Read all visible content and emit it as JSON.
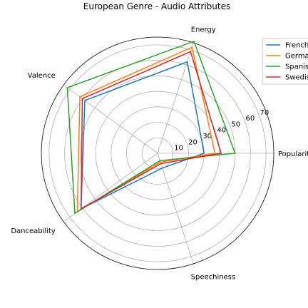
{
  "chart_data": {
    "type": "radar",
    "title": "European Genre - Audio Attributes",
    "axes": [
      "Popularity",
      "Energy",
      "Valence",
      "Danceability",
      "Speechiness"
    ],
    "r_ticks": [
      10,
      20,
      30,
      40,
      50,
      60,
      70
    ],
    "r_max": 75,
    "grid": true,
    "legend_position": "top-right",
    "series": [
      {
        "name": "French",
        "color": "#1f77b4",
        "values": [
          30,
          62,
          58,
          61,
          10
        ]
      },
      {
        "name": "German",
        "color": "#ff7f0e",
        "values": [
          37,
          72,
          62,
          64,
          6
        ]
      },
      {
        "name": "Spanish",
        "color": "#2ca02c",
        "values": [
          50,
          76,
          72,
          66,
          5
        ]
      },
      {
        "name": "Swedish",
        "color": "#d62728",
        "values": [
          41,
          69,
          60,
          61,
          7
        ]
      }
    ],
    "legend_labels": [
      "French",
      "Germa",
      "Spanis",
      "Swedis"
    ]
  }
}
